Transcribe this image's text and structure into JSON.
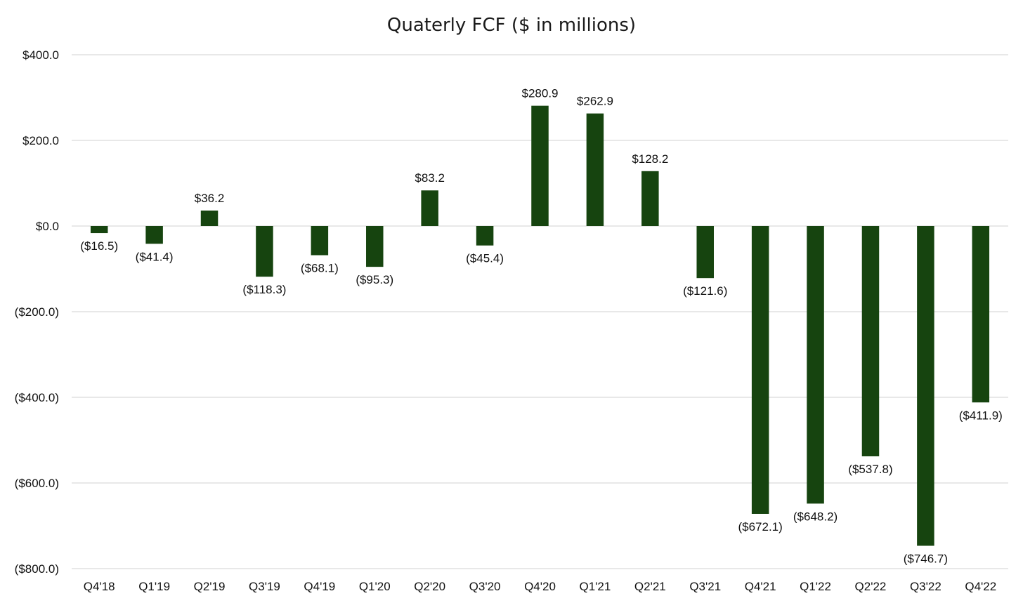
{
  "chart_data": {
    "type": "bar",
    "title": "Quaterly FCF ($ in millions)",
    "xlabel": "",
    "ylabel": "",
    "ylim": [
      -800,
      400
    ],
    "yticks": [
      400,
      200,
      0,
      -200,
      -400,
      -600,
      -800
    ],
    "ytick_labels": [
      "$400.0",
      "$200.0",
      "$0.0",
      "($200.0)",
      "($400.0)",
      "($600.0)",
      "($800.0)"
    ],
    "categories": [
      "Q4'18",
      "Q1'19",
      "Q2'19",
      "Q3'19",
      "Q4'19",
      "Q1'20",
      "Q2'20",
      "Q3'20",
      "Q4'20",
      "Q1'21",
      "Q2'21",
      "Q3'21",
      "Q4'21",
      "Q1'22",
      "Q2'22",
      "Q3'22",
      "Q4'22"
    ],
    "values": [
      -16.5,
      -41.4,
      36.2,
      -118.3,
      -68.1,
      -95.3,
      83.2,
      -45.4,
      280.9,
      262.9,
      128.2,
      -121.6,
      -672.1,
      -648.2,
      -537.8,
      -746.7,
      -411.9
    ],
    "data_labels": [
      "($16.5)",
      "($41.4)",
      "$36.2",
      "($118.3)",
      "($68.1)",
      "($95.3)",
      "$83.2",
      "($45.4)",
      "$280.9",
      "$262.9",
      "$128.2",
      "($121.6)",
      "($672.1)",
      "($648.2)",
      "($537.8)",
      "($746.7)",
      "($411.9)"
    ],
    "grid": true,
    "legend": "none",
    "colors": {
      "bar": "#16440f",
      "grid": "#d9d9d9",
      "text": "#111111"
    }
  }
}
